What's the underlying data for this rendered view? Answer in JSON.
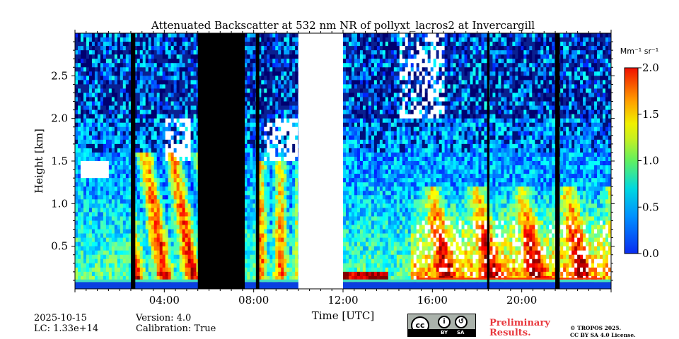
{
  "chart_data": {
    "type": "heatmap",
    "title": "Attenuated Backscatter at 532 nm NR of pollyxt_lacros2 at Invercargill",
    "xlabel": "Time [UTC]",
    "ylabel": "Height [km]",
    "x_ticks": [
      "04:00",
      "08:00",
      "12:00",
      "16:00",
      "20:00"
    ],
    "x_tick_hours": [
      4,
      8,
      12,
      16,
      20
    ],
    "xlim_hours": [
      0,
      24
    ],
    "y_ticks": [
      "0.5",
      "1.0",
      "1.5",
      "2.0",
      "2.5"
    ],
    "y_tick_values": [
      0.5,
      1.0,
      1.5,
      2.0,
      2.5
    ],
    "ylim_km": [
      0,
      3.0
    ],
    "colorbar": {
      "label": "Mm⁻¹ sr⁻¹",
      "range": [
        0.0,
        2.0
      ],
      "ticks": [
        "0.0",
        "0.5",
        "1.0",
        "1.5",
        "2.0"
      ],
      "tick_values": [
        0.0,
        0.5,
        1.0,
        1.5,
        2.0
      ],
      "colormap": "jet"
    },
    "no_signal_black_intervals_hours": [
      [
        2.5,
        2.7
      ],
      [
        5.5,
        7.6
      ],
      [
        8.1,
        8.25
      ],
      [
        18.45,
        18.55
      ],
      [
        21.5,
        21.7
      ]
    ],
    "missing_data_interval_hours": [
      10.0,
      12.0
    ]
  },
  "meta": {
    "date": "2025-10-15",
    "lc": "LC: 1.33e+14",
    "version": "Version: 4.0",
    "calibration": "Calibration: True"
  },
  "badge": {
    "preliminary_line1": "Preliminary",
    "preliminary_line2": "Results.",
    "license_line1": "© TROPOS 2025.",
    "license_line2": "CC BY SA 4.0 License.",
    "cc_label_by": "BY",
    "cc_label_sa": "SA"
  }
}
